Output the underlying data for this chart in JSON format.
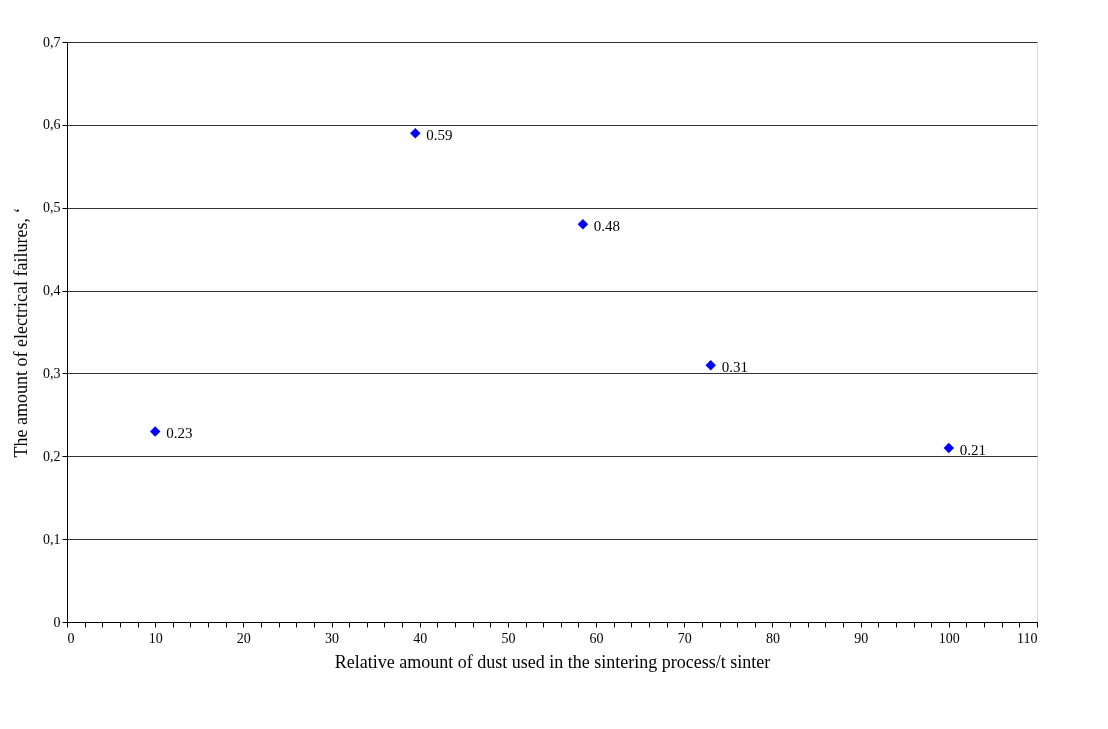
{
  "chart_data": {
    "type": "scatter",
    "xlabel": "Relative amount of dust used in the sintering process/t sinter",
    "ylabel": "The amount of electrical failures, ‘",
    "x": [
      10,
      39.5,
      58.5,
      73,
      100
    ],
    "series": [
      {
        "color": "#0000ff",
        "values": [
          0.23,
          0.59,
          0.48,
          0.31,
          0.21
        ]
      }
    ],
    "xlim": [
      0,
      110
    ],
    "xticks": [
      0,
      {
        "value": 2,
        "label": null
      },
      {
        "value": 4,
        "label": null
      },
      {
        "value": 6,
        "label": null
      },
      {
        "value": 8,
        "label": null
      },
      10,
      {
        "value": 12,
        "label": null
      },
      {
        "value": 14,
        "label": null
      },
      {
        "value": 16,
        "label": null
      },
      {
        "value": 18,
        "label": null
      },
      20,
      {
        "value": 22,
        "label": null
      },
      {
        "value": 24,
        "label": null
      },
      {
        "value": 26,
        "label": null
      },
      {
        "value": 28,
        "label": null
      },
      30,
      {
        "value": 32,
        "label": null
      },
      {
        "value": 34,
        "label": null
      },
      {
        "value": 36,
        "label": null
      },
      {
        "value": 38,
        "label": null
      },
      40,
      {
        "value": 42,
        "label": null
      },
      {
        "value": 44,
        "label": null
      },
      {
        "value": 46,
        "label": null
      },
      {
        "value": 48,
        "label": null
      },
      50,
      {
        "value": 52,
        "label": null
      },
      {
        "value": 54,
        "label": null
      },
      {
        "value": 56,
        "label": null
      },
      {
        "value": 58,
        "label": null
      },
      60,
      {
        "value": 62,
        "label": null
      },
      {
        "value": 64,
        "label": null
      },
      {
        "value": 66,
        "label": null
      },
      {
        "value": 68,
        "label": null
      },
      70,
      {
        "value": 72,
        "label": null
      },
      {
        "value": 74,
        "label": null
      },
      {
        "value": 76,
        "label": null
      },
      {
        "value": 78,
        "label": null
      },
      80,
      {
        "value": 82,
        "label": null
      },
      {
        "value": 84,
        "label": null
      },
      {
        "value": 86,
        "label": null
      },
      {
        "value": 88,
        "label": null
      },
      90,
      {
        "value": 92,
        "label": null
      },
      {
        "value": 94,
        "label": null
      },
      {
        "value": 96,
        "label": null
      },
      {
        "value": 98,
        "label": null
      },
      100,
      {
        "value": 102,
        "label": null
      },
      {
        "value": 104,
        "label": null
      },
      {
        "value": 106,
        "label": null
      },
      {
        "value": 108,
        "label": null
      },
      110
    ],
    "ylim": [
      0,
      0.7
    ],
    "yticks": [
      {
        "value": 0,
        "label": "0"
      },
      {
        "value": 0.1,
        "label": "0,1"
      },
      {
        "value": 0.2,
        "label": "0,2"
      },
      {
        "value": 0.3,
        "label": "0,3"
      },
      {
        "value": 0.4,
        "label": "0,4"
      },
      {
        "value": 0.5,
        "label": "0,5"
      },
      {
        "value": 0.6,
        "label": "0,6"
      },
      {
        "value": 0.7,
        "label": "0,7"
      }
    ],
    "grid": "y",
    "marker": "diamond",
    "data_labels": true
  }
}
